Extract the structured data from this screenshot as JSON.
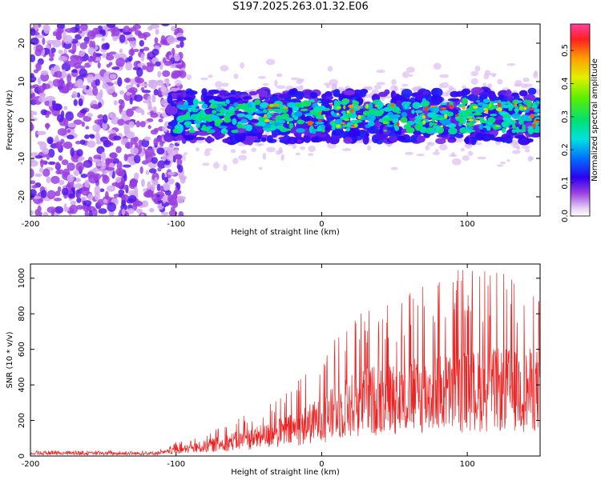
{
  "title": "S197.2025.263.01.32.E06",
  "chart_data": [
    {
      "type": "heatmap",
      "xlabel": "Height of straight line (km)",
      "ylabel": "Frequency (Hz)",
      "xlim": [
        -200,
        150
      ],
      "ylim": [
        -25,
        25
      ],
      "xticks": [
        -200,
        -100,
        0,
        100
      ],
      "xtick_labels": [
        "-200",
        "-100",
        "0",
        "100"
      ],
      "yticks": [
        -20,
        -10,
        0,
        10,
        20
      ],
      "ytick_labels": [
        "-20",
        "-10",
        "0",
        "10",
        "20"
      ],
      "colorbar": {
        "label": "Normalized spectral amplitude",
        "range": [
          0,
          0.58
        ],
        "ticks": [
          0,
          0.1,
          0.2,
          0.3,
          0.4,
          0.5
        ],
        "tick_labels": [
          "0.0",
          "0.1",
          "0.2",
          "0.3",
          "0.4",
          "0.5"
        ]
      },
      "description_data": {
        "noise_region_x": [
          -200,
          -105
        ],
        "signal_band_x": [
          -105,
          150
        ],
        "signal_band_center_hz": 1,
        "signal_band_halfwidth_hz": 5,
        "peak_amplitude": 0.58
      }
    },
    {
      "type": "line",
      "xlabel": "Height of straight line (km)",
      "ylabel": "SNR (10 * v/v)",
      "xlim": [
        -200,
        150
      ],
      "ylim": [
        0,
        1080
      ],
      "xticks": [
        -200,
        -100,
        0,
        100
      ],
      "xtick_labels": [
        "-200",
        "-100",
        "0",
        "100"
      ],
      "yticks": [
        0,
        200,
        400,
        600,
        800,
        1000
      ],
      "ytick_labels": [
        "0",
        "200",
        "400",
        "600",
        "800",
        "1000"
      ],
      "series": [
        {
          "name": "SNR",
          "color": "#ee2222",
          "envelope_x": [
            -200,
            -120,
            -110,
            -100,
            -80,
            -60,
            -40,
            -20,
            0,
            20,
            40,
            60,
            80,
            100,
            120,
            150
          ],
          "envelope_mean": [
            15,
            15,
            18,
            30,
            55,
            85,
            110,
            150,
            210,
            290,
            330,
            340,
            360,
            370,
            380,
            380
          ],
          "envelope_peak": [
            30,
            30,
            40,
            80,
            130,
            200,
            300,
            400,
            680,
            840,
            850,
            920,
            1075,
            1060,
            1060,
            900
          ]
        }
      ]
    }
  ]
}
